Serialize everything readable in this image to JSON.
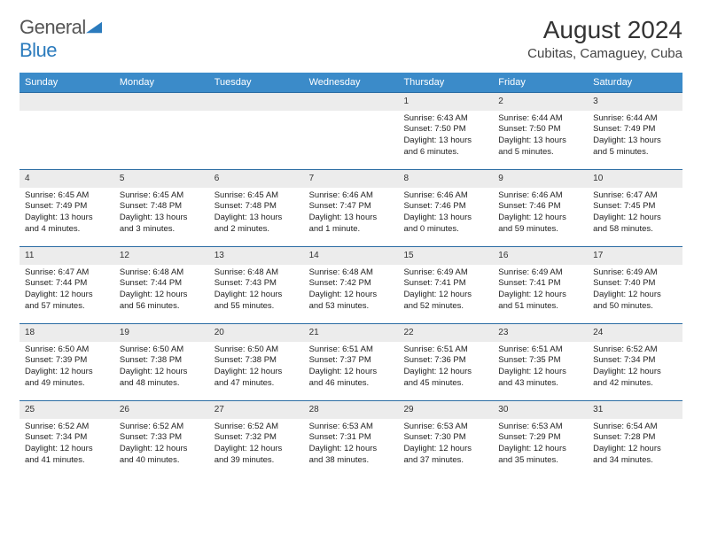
{
  "logo": {
    "word1": "General",
    "word2": "Blue"
  },
  "title": "August 2024",
  "location": "Cubitas, Camaguey, Cuba",
  "colors": {
    "header_bg": "#3b8bc9",
    "header_text": "#ffffff",
    "week_border": "#2b6ca3",
    "daynum_bg": "#ececec",
    "logo_blue": "#2b7bbd",
    "text": "#222222"
  },
  "day_names": [
    "Sunday",
    "Monday",
    "Tuesday",
    "Wednesday",
    "Thursday",
    "Friday",
    "Saturday"
  ],
  "weeks": [
    [
      {
        "day": "",
        "lines": []
      },
      {
        "day": "",
        "lines": []
      },
      {
        "day": "",
        "lines": []
      },
      {
        "day": "",
        "lines": []
      },
      {
        "day": "1",
        "lines": [
          "Sunrise: 6:43 AM",
          "Sunset: 7:50 PM",
          "Daylight: 13 hours and 6 minutes."
        ]
      },
      {
        "day": "2",
        "lines": [
          "Sunrise: 6:44 AM",
          "Sunset: 7:50 PM",
          "Daylight: 13 hours and 5 minutes."
        ]
      },
      {
        "day": "3",
        "lines": [
          "Sunrise: 6:44 AM",
          "Sunset: 7:49 PM",
          "Daylight: 13 hours and 5 minutes."
        ]
      }
    ],
    [
      {
        "day": "4",
        "lines": [
          "Sunrise: 6:45 AM",
          "Sunset: 7:49 PM",
          "Daylight: 13 hours and 4 minutes."
        ]
      },
      {
        "day": "5",
        "lines": [
          "Sunrise: 6:45 AM",
          "Sunset: 7:48 PM",
          "Daylight: 13 hours and 3 minutes."
        ]
      },
      {
        "day": "6",
        "lines": [
          "Sunrise: 6:45 AM",
          "Sunset: 7:48 PM",
          "Daylight: 13 hours and 2 minutes."
        ]
      },
      {
        "day": "7",
        "lines": [
          "Sunrise: 6:46 AM",
          "Sunset: 7:47 PM",
          "Daylight: 13 hours and 1 minute."
        ]
      },
      {
        "day": "8",
        "lines": [
          "Sunrise: 6:46 AM",
          "Sunset: 7:46 PM",
          "Daylight: 13 hours and 0 minutes."
        ]
      },
      {
        "day": "9",
        "lines": [
          "Sunrise: 6:46 AM",
          "Sunset: 7:46 PM",
          "Daylight: 12 hours and 59 minutes."
        ]
      },
      {
        "day": "10",
        "lines": [
          "Sunrise: 6:47 AM",
          "Sunset: 7:45 PM",
          "Daylight: 12 hours and 58 minutes."
        ]
      }
    ],
    [
      {
        "day": "11",
        "lines": [
          "Sunrise: 6:47 AM",
          "Sunset: 7:44 PM",
          "Daylight: 12 hours and 57 minutes."
        ]
      },
      {
        "day": "12",
        "lines": [
          "Sunrise: 6:48 AM",
          "Sunset: 7:44 PM",
          "Daylight: 12 hours and 56 minutes."
        ]
      },
      {
        "day": "13",
        "lines": [
          "Sunrise: 6:48 AM",
          "Sunset: 7:43 PM",
          "Daylight: 12 hours and 55 minutes."
        ]
      },
      {
        "day": "14",
        "lines": [
          "Sunrise: 6:48 AM",
          "Sunset: 7:42 PM",
          "Daylight: 12 hours and 53 minutes."
        ]
      },
      {
        "day": "15",
        "lines": [
          "Sunrise: 6:49 AM",
          "Sunset: 7:41 PM",
          "Daylight: 12 hours and 52 minutes."
        ]
      },
      {
        "day": "16",
        "lines": [
          "Sunrise: 6:49 AM",
          "Sunset: 7:41 PM",
          "Daylight: 12 hours and 51 minutes."
        ]
      },
      {
        "day": "17",
        "lines": [
          "Sunrise: 6:49 AM",
          "Sunset: 7:40 PM",
          "Daylight: 12 hours and 50 minutes."
        ]
      }
    ],
    [
      {
        "day": "18",
        "lines": [
          "Sunrise: 6:50 AM",
          "Sunset: 7:39 PM",
          "Daylight: 12 hours and 49 minutes."
        ]
      },
      {
        "day": "19",
        "lines": [
          "Sunrise: 6:50 AM",
          "Sunset: 7:38 PM",
          "Daylight: 12 hours and 48 minutes."
        ]
      },
      {
        "day": "20",
        "lines": [
          "Sunrise: 6:50 AM",
          "Sunset: 7:38 PM",
          "Daylight: 12 hours and 47 minutes."
        ]
      },
      {
        "day": "21",
        "lines": [
          "Sunrise: 6:51 AM",
          "Sunset: 7:37 PM",
          "Daylight: 12 hours and 46 minutes."
        ]
      },
      {
        "day": "22",
        "lines": [
          "Sunrise: 6:51 AM",
          "Sunset: 7:36 PM",
          "Daylight: 12 hours and 45 minutes."
        ]
      },
      {
        "day": "23",
        "lines": [
          "Sunrise: 6:51 AM",
          "Sunset: 7:35 PM",
          "Daylight: 12 hours and 43 minutes."
        ]
      },
      {
        "day": "24",
        "lines": [
          "Sunrise: 6:52 AM",
          "Sunset: 7:34 PM",
          "Daylight: 12 hours and 42 minutes."
        ]
      }
    ],
    [
      {
        "day": "25",
        "lines": [
          "Sunrise: 6:52 AM",
          "Sunset: 7:34 PM",
          "Daylight: 12 hours and 41 minutes."
        ]
      },
      {
        "day": "26",
        "lines": [
          "Sunrise: 6:52 AM",
          "Sunset: 7:33 PM",
          "Daylight: 12 hours and 40 minutes."
        ]
      },
      {
        "day": "27",
        "lines": [
          "Sunrise: 6:52 AM",
          "Sunset: 7:32 PM",
          "Daylight: 12 hours and 39 minutes."
        ]
      },
      {
        "day": "28",
        "lines": [
          "Sunrise: 6:53 AM",
          "Sunset: 7:31 PM",
          "Daylight: 12 hours and 38 minutes."
        ]
      },
      {
        "day": "29",
        "lines": [
          "Sunrise: 6:53 AM",
          "Sunset: 7:30 PM",
          "Daylight: 12 hours and 37 minutes."
        ]
      },
      {
        "day": "30",
        "lines": [
          "Sunrise: 6:53 AM",
          "Sunset: 7:29 PM",
          "Daylight: 12 hours and 35 minutes."
        ]
      },
      {
        "day": "31",
        "lines": [
          "Sunrise: 6:54 AM",
          "Sunset: 7:28 PM",
          "Daylight: 12 hours and 34 minutes."
        ]
      }
    ]
  ]
}
